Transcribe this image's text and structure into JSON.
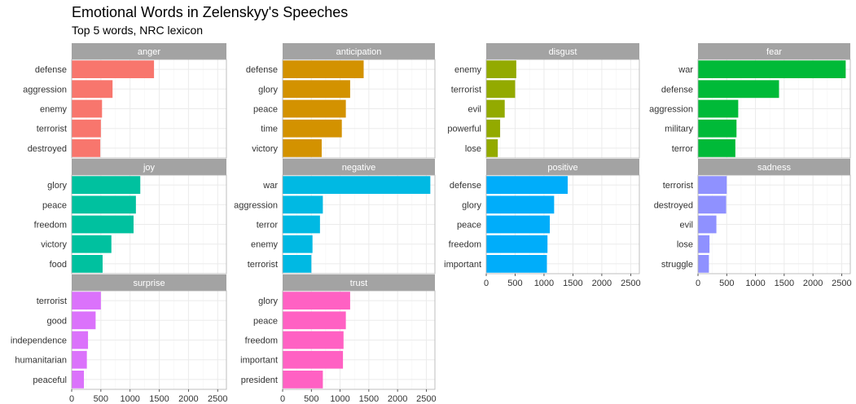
{
  "chart_data": {
    "type": "bar",
    "orientation": "horizontal",
    "title": "Emotional Words in Zelenskyy's Speeches",
    "subtitle": "Top 5 words, NRC lexicon",
    "xlim": [
      0,
      2650
    ],
    "x_ticks": [
      "0",
      "500",
      "1000",
      "1500",
      "2000",
      "2500"
    ],
    "x_tick_values": [
      0,
      500,
      1000,
      1500,
      2000,
      2500
    ],
    "grid": true,
    "facets": [
      {
        "name": "anger",
        "color": "#F8766D",
        "categories": [
          "defense",
          "aggression",
          "enemy",
          "terrorist",
          "destroyed"
        ],
        "values": [
          1410,
          700,
          520,
          500,
          490
        ]
      },
      {
        "name": "anticipation",
        "color": "#D39200",
        "categories": [
          "defense",
          "glory",
          "peace",
          "time",
          "victory"
        ],
        "values": [
          1410,
          1175,
          1100,
          1030,
          680
        ]
      },
      {
        "name": "disgust",
        "color": "#93AA00",
        "categories": [
          "enemy",
          "terrorist",
          "evil",
          "powerful",
          "lose"
        ],
        "values": [
          520,
          500,
          320,
          240,
          200
        ]
      },
      {
        "name": "fear",
        "color": "#00BA38",
        "categories": [
          "war",
          "defense",
          "aggression",
          "military",
          "terror"
        ],
        "values": [
          2570,
          1410,
          700,
          670,
          650
        ]
      },
      {
        "name": "joy",
        "color": "#00C19F",
        "categories": [
          "glory",
          "peace",
          "freedom",
          "victory",
          "food"
        ],
        "values": [
          1175,
          1100,
          1060,
          680,
          530
        ]
      },
      {
        "name": "negative",
        "color": "#00B9E3",
        "categories": [
          "war",
          "aggression",
          "terror",
          "enemy",
          "terrorist"
        ],
        "values": [
          2570,
          700,
          650,
          520,
          500
        ]
      },
      {
        "name": "positive",
        "color": "#00ADFA",
        "categories": [
          "defense",
          "glory",
          "peace",
          "freedom",
          "important"
        ],
        "values": [
          1410,
          1175,
          1100,
          1060,
          1050
        ]
      },
      {
        "name": "sadness",
        "color": "#8F91FF",
        "categories": [
          "terrorist",
          "destroyed",
          "evil",
          "lose",
          "struggle"
        ],
        "values": [
          500,
          490,
          320,
          200,
          190
        ]
      },
      {
        "name": "surprise",
        "color": "#DB72FB",
        "categories": [
          "terrorist",
          "good",
          "independence",
          "humanitarian",
          "peaceful"
        ],
        "values": [
          500,
          410,
          280,
          260,
          210
        ]
      },
      {
        "name": "trust",
        "color": "#FF61C3",
        "categories": [
          "glory",
          "peace",
          "freedom",
          "important",
          "president"
        ],
        "values": [
          1175,
          1100,
          1060,
          1050,
          700
        ]
      }
    ]
  }
}
